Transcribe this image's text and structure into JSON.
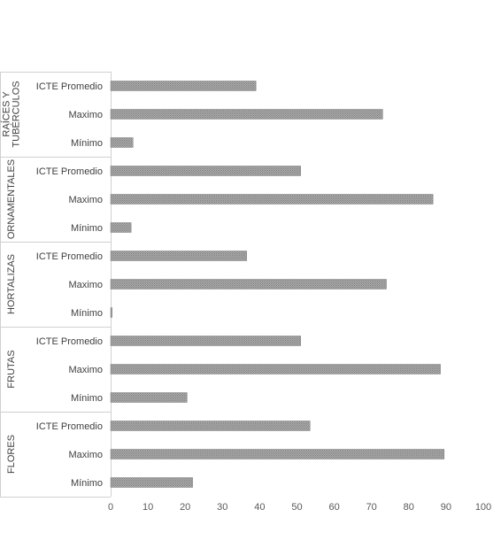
{
  "chart_data": {
    "type": "bar",
    "orientation": "horizontal",
    "title": "",
    "xlabel": "",
    "ylabel": "",
    "xlim": [
      0,
      100
    ],
    "x_ticks": [
      0,
      10,
      20,
      30,
      40,
      50,
      60,
      70,
      80,
      90,
      100
    ],
    "grid": false,
    "legend": "none",
    "bar_color": "#a6a6a6",
    "bar_edge_color": "#7f7f7f",
    "groups": [
      {
        "name": "RAÍCES Y TUBÉRCULOS",
        "name_lines": [
          "RAÍCES Y",
          "TUBÉRCULOS"
        ],
        "categories": [
          "ICTE Promedio",
          "Maximo",
          "Mínimo"
        ],
        "values": [
          39,
          73,
          6
        ]
      },
      {
        "name": "ORNAMENTALES",
        "name_lines": [
          "ORNAMENTALES"
        ],
        "categories": [
          "ICTE Promedio",
          "Maximo",
          "Mínimo"
        ],
        "values": [
          51,
          86.5,
          5.5
        ]
      },
      {
        "name": "HORTALIZAS",
        "name_lines": [
          "HORTALIZAS"
        ],
        "categories": [
          "ICTE Promedio",
          "Maximo",
          "Mínimo"
        ],
        "values": [
          36.5,
          74,
          0.4
        ]
      },
      {
        "name": "FRUTAS",
        "name_lines": [
          "FRUTAS"
        ],
        "categories": [
          "ICTE Promedio",
          "Maximo",
          "Mínimo"
        ],
        "values": [
          51,
          88.5,
          20.5
        ]
      },
      {
        "name": "FLORES",
        "name_lines": [
          "FLORES"
        ],
        "categories": [
          "ICTE Promedio",
          "Maximo",
          "Mínimo"
        ],
        "values": [
          53.5,
          89.5,
          22
        ]
      }
    ]
  }
}
